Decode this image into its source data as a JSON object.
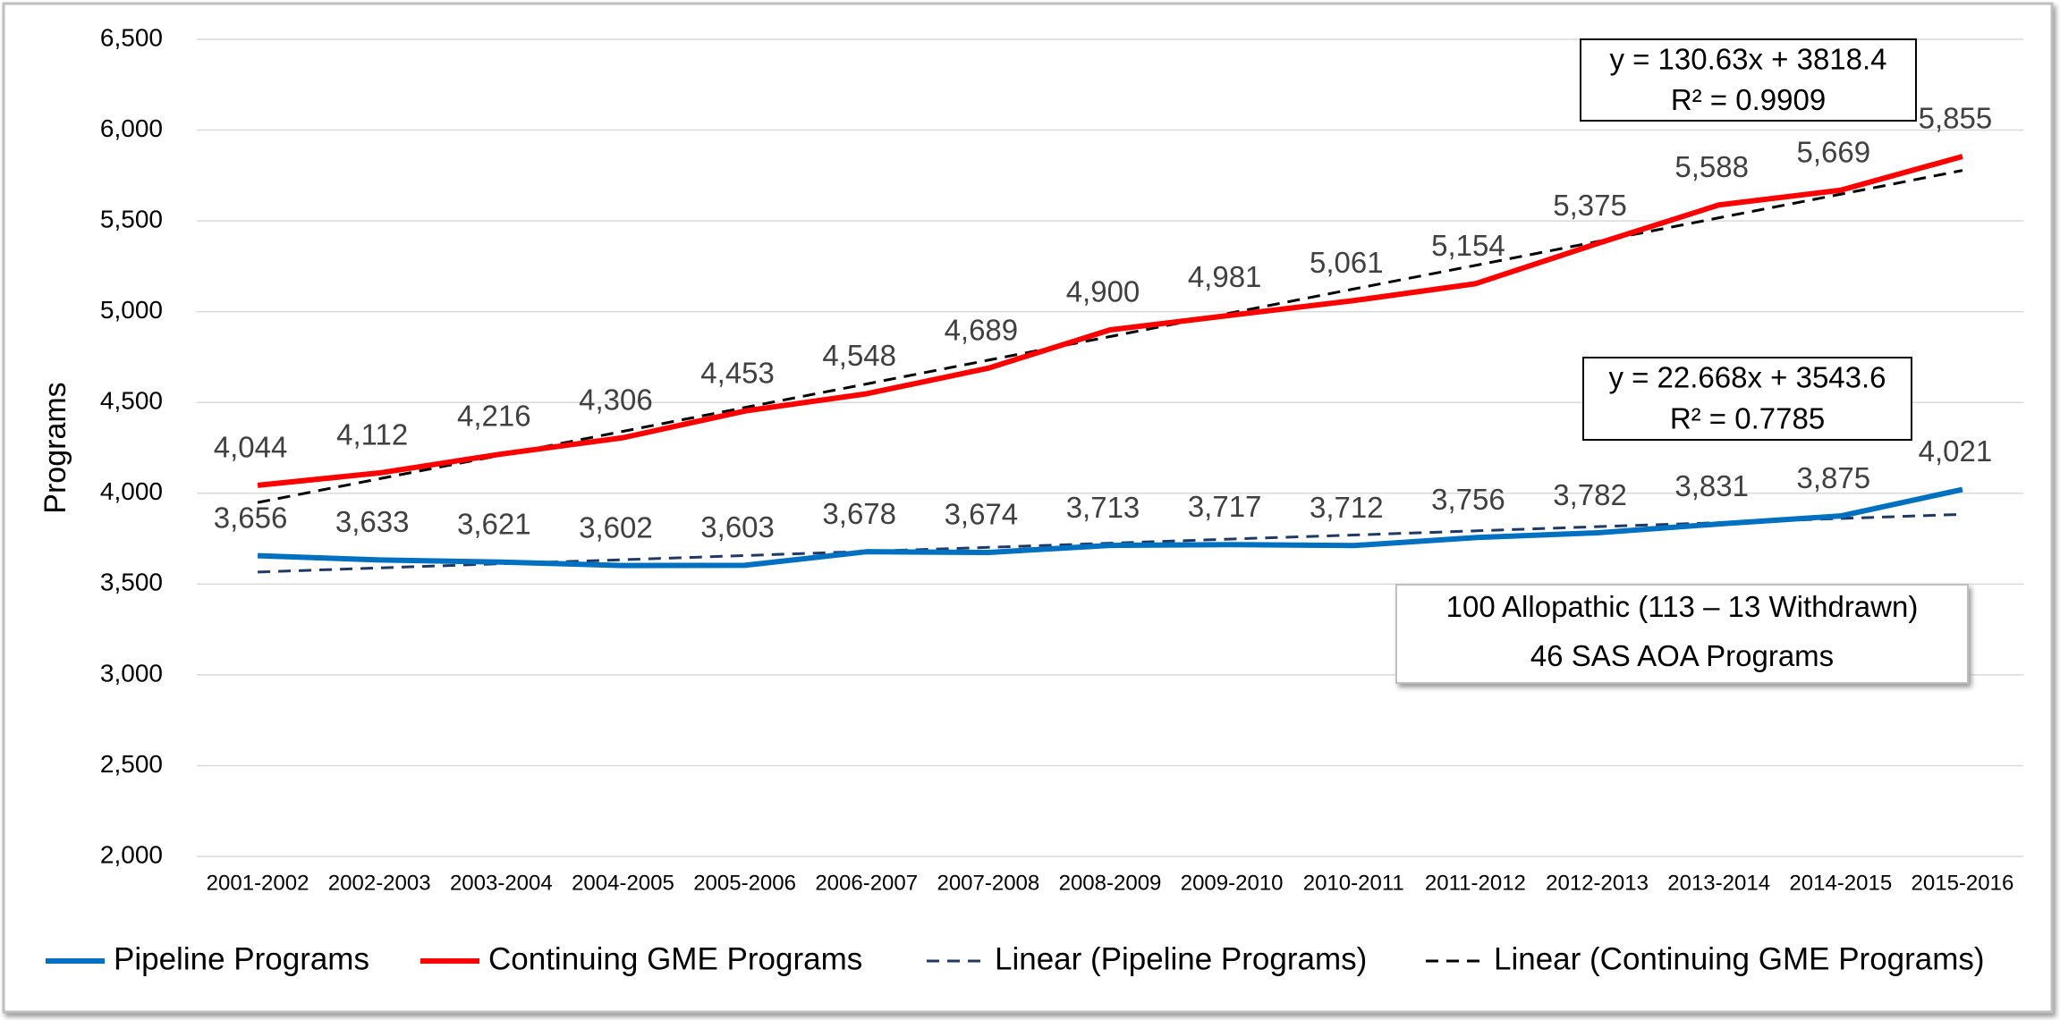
{
  "chart_data": {
    "type": "line",
    "ylabel": "Programs",
    "categories": [
      "2001-2002",
      "2002-2003",
      "2003-2004",
      "2004-2005",
      "2005-2006",
      "2006-2007",
      "2007-2008",
      "2008-2009",
      "2009-2010",
      "2010-2011",
      "2011-2012",
      "2012-2013",
      "2013-2014",
      "2014-2015",
      "2015-2016"
    ],
    "series": [
      {
        "name": "Pipeline Programs",
        "color": "#0070c0",
        "dashed": false,
        "data_labels": true,
        "values": [
          3656,
          3633,
          3621,
          3602,
          3603,
          3678,
          3674,
          3713,
          3717,
          3712,
          3756,
          3782,
          3831,
          3875,
          4021
        ],
        "value_labels": [
          "3,656",
          "3,633",
          "3,621",
          "3,602",
          "3,603",
          "3,678",
          "3,674",
          "3,713",
          "3,717",
          "3,712",
          "3,756",
          "3,782",
          "3,831",
          "3,875",
          "4,021"
        ]
      },
      {
        "name": "Continuing GME Programs",
        "color": "#ff0000",
        "dashed": false,
        "data_labels": true,
        "values": [
          4044,
          4112,
          4216,
          4306,
          4453,
          4548,
          4689,
          4900,
          4981,
          5061,
          5154,
          5375,
          5588,
          5669,
          5855
        ],
        "value_labels": [
          "4,044",
          "4,112",
          "4,216",
          "4,306",
          "4,453",
          "4,548",
          "4,689",
          "4,900",
          "4,981",
          "5,061",
          "5,154",
          "5,375",
          "5,588",
          "5,669",
          "5,855"
        ]
      },
      {
        "name": "Linear (Pipeline Programs)",
        "color": "#1f3864",
        "dashed": true,
        "data_labels": false,
        "values": [
          3566,
          3589,
          3612,
          3634,
          3657,
          3680,
          3702,
          3725,
          3748,
          3770,
          3793,
          3816,
          3838,
          3861,
          3884
        ]
      },
      {
        "name": "Linear (Continuing GME Programs)",
        "color": "#000000",
        "dashed": true,
        "data_labels": false,
        "values": [
          3949,
          4080,
          4210,
          4341,
          4472,
          4602,
          4733,
          4863,
          4994,
          5125,
          5255,
          5386,
          5517,
          5647,
          5778
        ]
      }
    ],
    "ylim": [
      2000,
      6500
    ],
    "yticks": [
      {
        "value": 2000,
        "label": "2,000"
      },
      {
        "value": 2500,
        "label": "2,500"
      },
      {
        "value": 3000,
        "label": "3,000"
      },
      {
        "value": 3500,
        "label": "3,500"
      },
      {
        "value": 4000,
        "label": "4,000"
      },
      {
        "value": 4500,
        "label": "4,500"
      },
      {
        "value": 5000,
        "label": "5,000"
      },
      {
        "value": 5500,
        "label": "5,500"
      },
      {
        "value": 6000,
        "label": "6,000"
      },
      {
        "value": 6500,
        "label": "6,500"
      }
    ],
    "grid": true,
    "legend": "bottom",
    "annotations": [
      [
        "y = 130.63x + 3818.4",
        "R² = 0.9909"
      ],
      [
        "y = 22.668x + 3543.6",
        "R² = 0.7785"
      ],
      [
        "100 Allopathic (113 – 13 Withdrawn)",
        "46 SAS AOA Programs"
      ]
    ]
  }
}
